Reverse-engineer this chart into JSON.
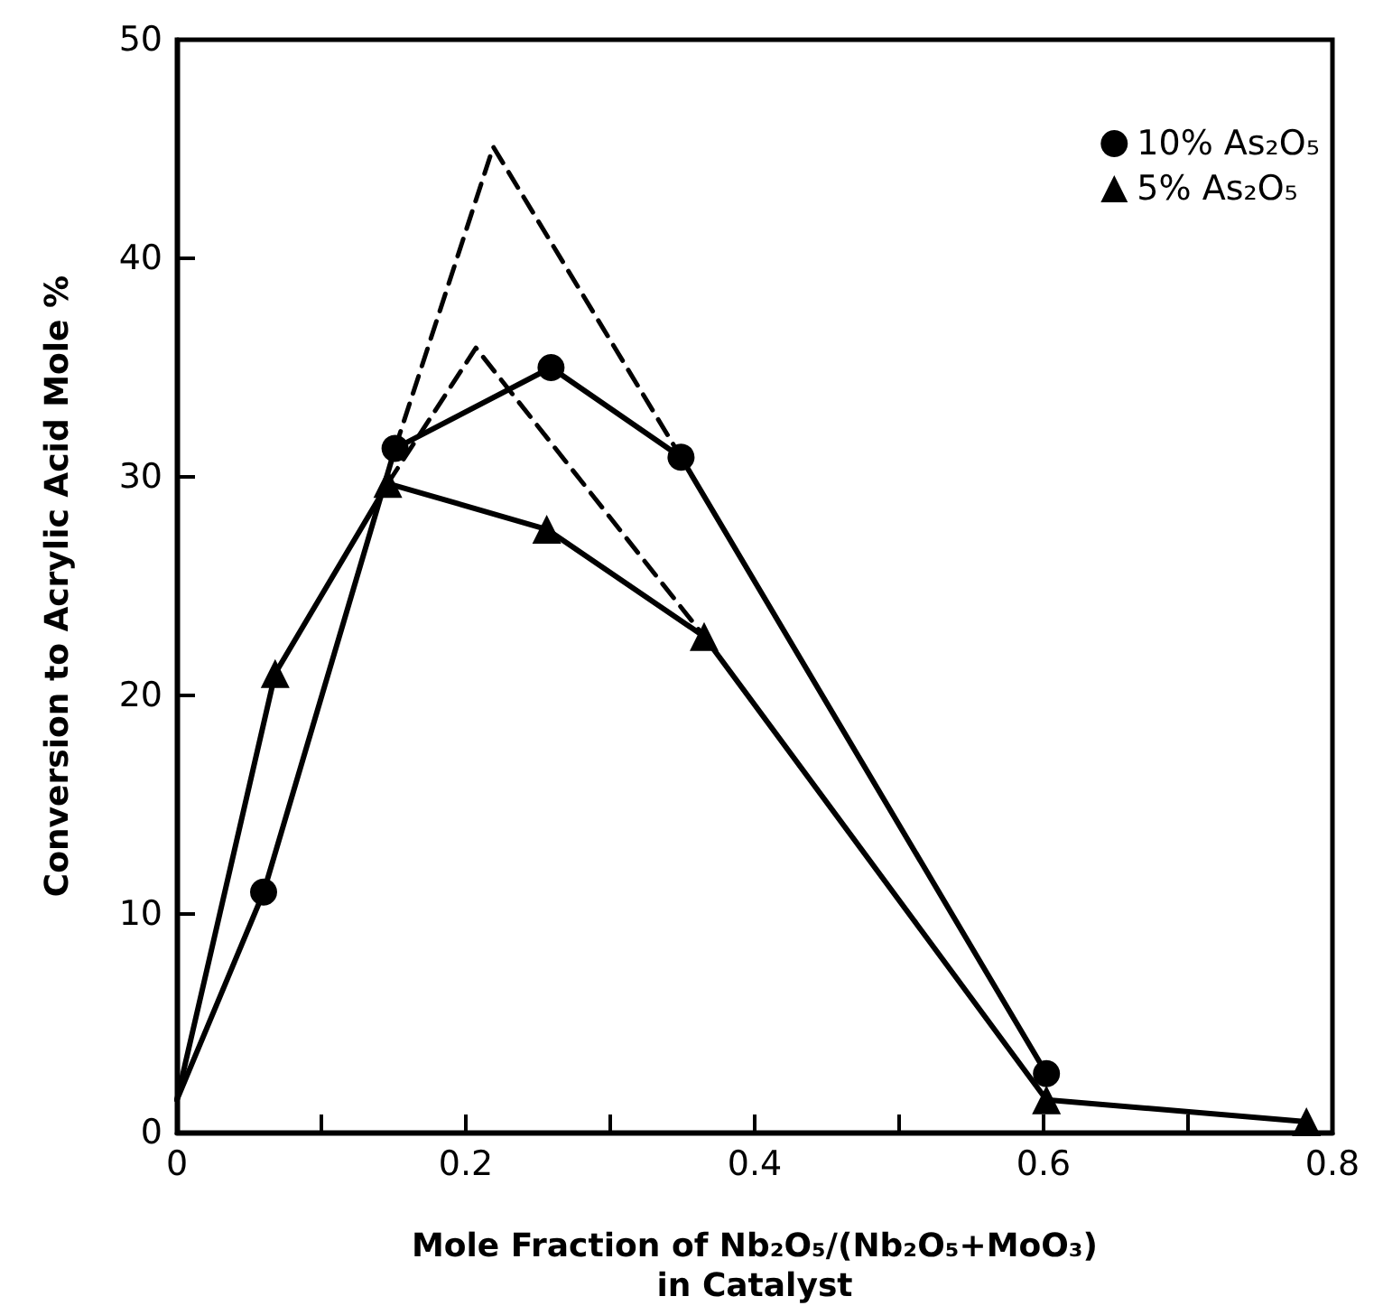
{
  "chart_data": {
    "type": "line",
    "xlabel": "Mole Fraction of Nb₂O₅/(Nb₂O₅+MoO₃)\nin Catalyst",
    "ylabel": "Conversion to Acrylic Acid Mole %",
    "series": [
      {
        "name": "10% As₂O₅",
        "color": "#000000",
        "marker": "circle",
        "line_style": "solid",
        "x": [
          0,
          0.06,
          0.151,
          0.259,
          0.349,
          0.602
        ],
        "values": [
          1.5,
          11,
          31.3,
          35,
          30.9,
          2.7
        ]
      },
      {
        "name": "5% As₂O₅",
        "color": "#000000",
        "marker": "triangle",
        "line_style": "solid",
        "x": [
          0,
          0.068,
          0.146,
          0.256,
          0.365,
          0.602,
          0.782
        ],
        "values": [
          1.5,
          21,
          29.7,
          27.6,
          22.7,
          1.5,
          0.5
        ]
      },
      {
        "color": "#000000",
        "marker": "none",
        "line_style": "dashed",
        "x": [
          0.151,
          0.219,
          0.349
        ],
        "values": [
          31.3,
          45.1,
          30.9
        ]
      },
      {
        "color": "#000000",
        "marker": "none",
        "line_style": "dashed",
        "x": [
          0.146,
          0.207,
          0.365
        ],
        "values": [
          29.7,
          35.9,
          22.7
        ]
      }
    ],
    "xlim": [
      0,
      0.8
    ],
    "xticks": [
      0,
      {
        "value": 0.1,
        "label": null
      },
      0.2,
      {
        "value": 0.3,
        "label": null
      },
      0.4,
      {
        "value": 0.5,
        "label": null
      },
      0.6,
      {
        "value": 0.7,
        "label": null
      },
      0.8
    ],
    "ylim": [
      0,
      50
    ],
    "yticks": [
      0,
      10,
      20,
      30,
      40,
      50
    ],
    "grid": false,
    "legend": "top right"
  }
}
